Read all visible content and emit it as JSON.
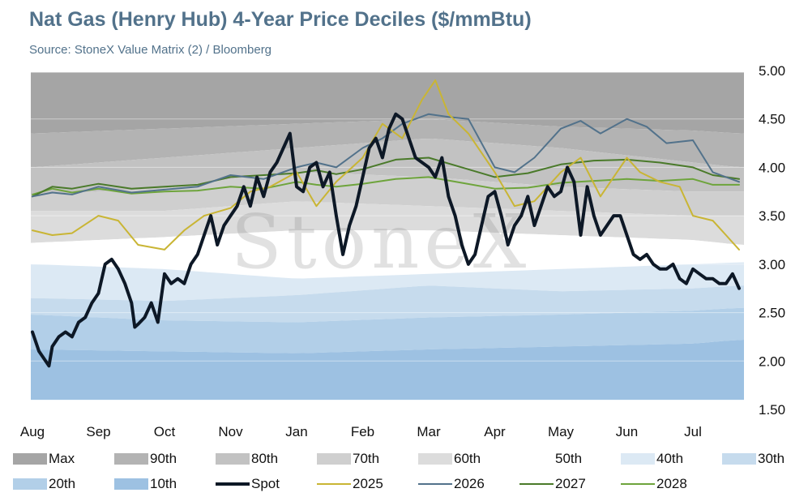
{
  "chart_data": {
    "type": "area",
    "title": "Nat Gas (Henry Hub) 4-Year Price Deciles ($/mmBtu)",
    "subtitle": "Source: StoneX Value Matrix (2) / Bloomberg",
    "watermark": "StoneX",
    "ylim": [
      1.5,
      5.0
    ],
    "y_ticks": [
      "5.00",
      "4.50",
      "4.00",
      "3.50",
      "3.00",
      "2.50",
      "2.00",
      "1.50"
    ],
    "y_tick_values": [
      5.0,
      4.5,
      4.0,
      3.5,
      3.0,
      2.5,
      2.0,
      1.5
    ],
    "x_ticks": [
      "Aug",
      "Sep",
      "Oct",
      "Nov",
      "Jan",
      "Feb",
      "Mar",
      "Apr",
      "May",
      "Jun",
      "Jul"
    ],
    "x_tick_positions": [
      0,
      1,
      2,
      3,
      4,
      5,
      6,
      7,
      8,
      9,
      10
    ],
    "xlim": [
      0,
      10.7
    ],
    "grid": true,
    "legend_position": "bottom",
    "bands": [
      {
        "name": "Max",
        "color": "#a5a5a5",
        "x": [
          0,
          10.7
        ],
        "values": [
          4.98,
          4.98
        ]
      },
      {
        "name": "90th",
        "color": "#b3b3b3",
        "x": [
          0,
          2,
          4,
          6,
          8,
          10,
          10.7
        ],
        "values": [
          4.35,
          4.4,
          4.45,
          4.5,
          4.42,
          4.38,
          4.35
        ]
      },
      {
        "name": "80th",
        "color": "#c2c2c2",
        "x": [
          0,
          2,
          4,
          6,
          8,
          10,
          10.7
        ],
        "values": [
          4.0,
          4.1,
          4.2,
          4.3,
          4.2,
          4.05,
          4.0
        ]
      },
      {
        "name": "70th",
        "color": "#cfcfcf",
        "x": [
          0,
          2,
          3,
          4,
          6,
          8,
          10,
          10.7
        ],
        "values": [
          3.72,
          3.78,
          3.88,
          3.95,
          3.9,
          3.8,
          3.75,
          3.75
        ]
      },
      {
        "name": "60th",
        "color": "#dcdcdc",
        "x": [
          0,
          2,
          3,
          4,
          6,
          8,
          10,
          10.7
        ],
        "values": [
          3.55,
          3.55,
          3.6,
          3.65,
          3.6,
          3.55,
          3.5,
          3.5
        ]
      },
      {
        "name": "50th",
        "color": "#ffffff",
        "x": [
          0,
          2,
          4,
          6,
          8,
          10,
          10.7
        ],
        "values": [
          3.22,
          3.28,
          3.35,
          3.35,
          3.3,
          3.25,
          3.2
        ]
      },
      {
        "name": "40th",
        "color": "#dce9f4",
        "x": [
          0,
          2,
          4,
          6,
          8,
          10,
          10.7
        ],
        "values": [
          3.0,
          2.95,
          2.85,
          2.9,
          2.95,
          3.0,
          3.02
        ]
      },
      {
        "name": "30th",
        "color": "#c6dbed",
        "x": [
          0,
          2,
          4,
          6,
          8,
          10,
          10.7
        ],
        "values": [
          2.65,
          2.62,
          2.68,
          2.78,
          2.72,
          2.75,
          2.78
        ]
      },
      {
        "name": "20th",
        "color": "#b2cfe8",
        "x": [
          0,
          2,
          4,
          6,
          8,
          10,
          10.7
        ],
        "values": [
          2.48,
          2.42,
          2.4,
          2.45,
          2.48,
          2.52,
          2.55
        ]
      },
      {
        "name": "10th",
        "color": "#9dc1e2",
        "x": [
          0,
          2,
          4,
          6,
          8,
          10,
          10.7
        ],
        "values": [
          2.12,
          2.1,
          2.08,
          2.12,
          2.15,
          2.18,
          2.22
        ]
      },
      {
        "name": "Min",
        "color": "#8fb7de",
        "x": [
          0,
          10.7
        ],
        "values": [
          1.6,
          1.6
        ]
      }
    ],
    "series": [
      {
        "name": "2028",
        "color": "#6ea43c",
        "width": 2,
        "x": [
          0,
          0.3,
          0.6,
          1.0,
          1.5,
          2.0,
          2.5,
          3.0,
          3.5,
          4.0,
          4.3,
          4.6,
          5.0,
          5.5,
          6.0,
          6.5,
          7.0,
          7.5,
          8.0,
          8.5,
          9.0,
          9.5,
          10.0,
          10.3,
          10.7
        ],
        "values": [
          3.72,
          3.78,
          3.74,
          3.78,
          3.73,
          3.75,
          3.76,
          3.8,
          3.78,
          3.85,
          3.82,
          3.8,
          3.83,
          3.88,
          3.9,
          3.84,
          3.78,
          3.79,
          3.84,
          3.86,
          3.88,
          3.86,
          3.88,
          3.82,
          3.82
        ]
      },
      {
        "name": "2027",
        "color": "#4a7a2a",
        "width": 2,
        "x": [
          0,
          0.3,
          0.6,
          1.0,
          1.5,
          2.0,
          2.5,
          3.0,
          3.5,
          4.0,
          4.3,
          4.6,
          5.0,
          5.5,
          6.0,
          6.5,
          7.0,
          7.5,
          8.0,
          8.5,
          9.0,
          9.5,
          10.0,
          10.3,
          10.7
        ],
        "values": [
          3.7,
          3.8,
          3.78,
          3.83,
          3.78,
          3.8,
          3.82,
          3.9,
          3.92,
          3.94,
          3.97,
          3.93,
          3.98,
          4.08,
          4.1,
          4.0,
          3.9,
          3.94,
          4.03,
          4.07,
          4.08,
          4.05,
          4.0,
          3.92,
          3.88
        ]
      },
      {
        "name": "2026",
        "color": "#52728b",
        "width": 2,
        "x": [
          0,
          0.3,
          0.6,
          1.0,
          1.5,
          2.0,
          2.5,
          3.0,
          3.5,
          4.0,
          4.3,
          4.6,
          5.0,
          5.3,
          5.6,
          6.0,
          6.3,
          6.6,
          7.0,
          7.3,
          7.6,
          8.0,
          8.3,
          8.6,
          9.0,
          9.3,
          9.6,
          10.0,
          10.3,
          10.7
        ],
        "values": [
          3.7,
          3.74,
          3.72,
          3.8,
          3.74,
          3.77,
          3.8,
          3.92,
          3.88,
          4.0,
          4.05,
          4.0,
          4.2,
          4.3,
          4.45,
          4.55,
          4.52,
          4.5,
          4.0,
          3.95,
          4.1,
          4.4,
          4.48,
          4.35,
          4.5,
          4.42,
          4.25,
          4.28,
          3.95,
          3.85
        ]
      },
      {
        "name": "2025",
        "color": "#c9b534",
        "width": 2,
        "x": [
          0,
          0.3,
          0.6,
          1.0,
          1.3,
          1.6,
          2.0,
          2.3,
          2.6,
          3.0,
          3.3,
          3.6,
          4.0,
          4.3,
          4.6,
          5.0,
          5.3,
          5.6,
          5.9,
          6.1,
          6.3,
          6.6,
          7.0,
          7.3,
          7.6,
          8.0,
          8.3,
          8.6,
          9.0,
          9.2,
          9.5,
          9.8,
          10.0,
          10.3,
          10.5,
          10.7
        ],
        "values": [
          3.35,
          3.3,
          3.32,
          3.5,
          3.45,
          3.2,
          3.15,
          3.35,
          3.5,
          3.58,
          3.75,
          3.8,
          3.95,
          3.6,
          3.85,
          4.1,
          4.45,
          4.3,
          4.7,
          4.9,
          4.55,
          4.35,
          3.95,
          3.6,
          3.65,
          3.95,
          4.1,
          3.7,
          4.1,
          3.95,
          3.85,
          3.8,
          3.5,
          3.45,
          3.3,
          3.15
        ]
      },
      {
        "name": "Spot",
        "color": "#0d1826",
        "width": 4,
        "x": [
          0,
          0.1,
          0.2,
          0.25,
          0.3,
          0.4,
          0.5,
          0.6,
          0.7,
          0.8,
          0.9,
          1.0,
          1.1,
          1.2,
          1.3,
          1.4,
          1.5,
          1.55,
          1.6,
          1.7,
          1.8,
          1.9,
          2.0,
          2.1,
          2.2,
          2.3,
          2.4,
          2.5,
          2.6,
          2.7,
          2.8,
          2.9,
          3.0,
          3.1,
          3.2,
          3.3,
          3.4,
          3.5,
          3.6,
          3.7,
          3.8,
          3.9,
          4.0,
          4.1,
          4.2,
          4.3,
          4.4,
          4.5,
          4.6,
          4.7,
          4.8,
          4.9,
          5.0,
          5.1,
          5.2,
          5.3,
          5.4,
          5.5,
          5.6,
          5.7,
          5.8,
          5.9,
          6.0,
          6.1,
          6.2,
          6.3,
          6.4,
          6.5,
          6.6,
          6.7,
          6.8,
          6.9,
          7.0,
          7.1,
          7.2,
          7.3,
          7.4,
          7.5,
          7.6,
          7.7,
          7.8,
          7.9,
          8.0,
          8.1,
          8.2,
          8.3,
          8.4,
          8.5,
          8.6,
          8.7,
          8.8,
          8.9,
          9.0,
          9.1,
          9.2,
          9.3,
          9.4,
          9.5,
          9.6,
          9.7,
          9.8,
          9.9,
          10.0,
          10.1,
          10.2,
          10.3,
          10.4,
          10.5,
          10.6,
          10.7
        ],
        "values": [
          2.3,
          2.1,
          2.0,
          1.95,
          2.15,
          2.25,
          2.3,
          2.25,
          2.4,
          2.45,
          2.6,
          2.7,
          3.0,
          3.05,
          2.95,
          2.8,
          2.6,
          2.35,
          2.38,
          2.45,
          2.6,
          2.4,
          2.9,
          2.8,
          2.85,
          2.8,
          3.0,
          3.1,
          3.3,
          3.5,
          3.2,
          3.4,
          3.5,
          3.6,
          3.8,
          3.6,
          3.9,
          3.7,
          3.95,
          4.05,
          4.2,
          4.35,
          3.8,
          3.75,
          4.0,
          4.05,
          3.8,
          3.95,
          3.5,
          3.1,
          3.4,
          3.6,
          3.9,
          4.2,
          4.3,
          4.1,
          4.4,
          4.55,
          4.5,
          4.3,
          4.1,
          4.05,
          4.0,
          3.9,
          4.1,
          3.7,
          3.5,
          3.2,
          3.0,
          3.1,
          3.4,
          3.7,
          3.75,
          3.5,
          3.2,
          3.4,
          3.5,
          3.7,
          3.4,
          3.6,
          3.8,
          3.7,
          3.75,
          4.0,
          3.85,
          3.3,
          3.8,
          3.5,
          3.3,
          3.4,
          3.5,
          3.5,
          3.3,
          3.1,
          3.05,
          3.1,
          3.0,
          2.95,
          2.95,
          3.0,
          2.85,
          2.8,
          2.95,
          2.9,
          2.85,
          2.85,
          2.8,
          2.8,
          2.9,
          2.75
        ]
      }
    ],
    "legend": [
      {
        "label": "Max",
        "kind": "area",
        "color": "#a5a5a5"
      },
      {
        "label": "90th",
        "kind": "area",
        "color": "#b3b3b3"
      },
      {
        "label": "80th",
        "kind": "area",
        "color": "#c2c2c2"
      },
      {
        "label": "70th",
        "kind": "area",
        "color": "#cfcfcf"
      },
      {
        "label": "60th",
        "kind": "area",
        "color": "#dcdcdc"
      },
      {
        "label": "50th",
        "kind": "area",
        "color": "#ffffff"
      },
      {
        "label": "40th",
        "kind": "area",
        "color": "#dce9f4"
      },
      {
        "label": "30th",
        "kind": "area",
        "color": "#c6dbed"
      },
      {
        "label": "20th",
        "kind": "area",
        "color": "#b2cfe8"
      },
      {
        "label": "10th",
        "kind": "area",
        "color": "#9dc1e2"
      },
      {
        "label": "Spot",
        "kind": "line",
        "color": "#0d1826"
      },
      {
        "label": "2025",
        "kind": "line",
        "color": "#c9b534"
      },
      {
        "label": "2026",
        "kind": "line",
        "color": "#52728b"
      },
      {
        "label": "2027",
        "kind": "line",
        "color": "#4a7a2a"
      },
      {
        "label": "2028",
        "kind": "line",
        "color": "#6ea43c"
      }
    ]
  }
}
